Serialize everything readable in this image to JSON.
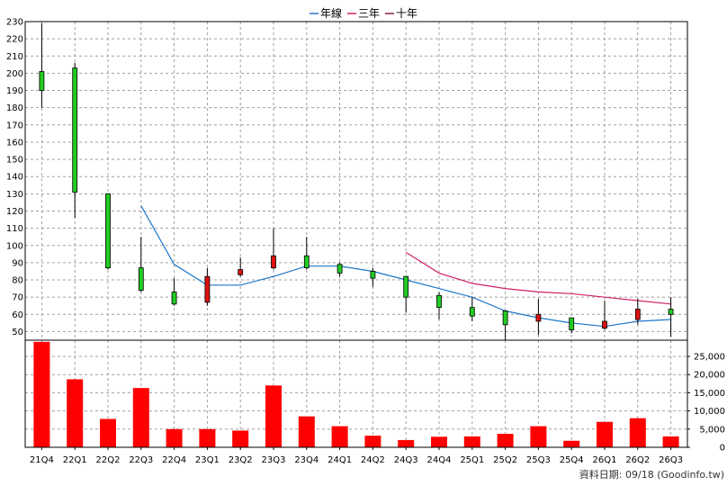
{
  "legend": [
    {
      "label": "年線",
      "color": "#1f77c8"
    },
    {
      "label": "三年",
      "color": "#d0206a"
    },
    {
      "label": "十年",
      "color": "#8b1a4a"
    }
  ],
  "footer": "資料日期: 09/18 (Goodinfo.tw)",
  "chart_data": {
    "type": "candlestick+bar",
    "categories": [
      "21Q4",
      "22Q1",
      "22Q2",
      "22Q3",
      "22Q4",
      "23Q1",
      "23Q2",
      "23Q3",
      "23Q4",
      "24Q1",
      "24Q2",
      "24Q3",
      "24Q4",
      "25Q1",
      "25Q2",
      "25Q3",
      "25Q4",
      "26Q1",
      "26Q2",
      "26Q3"
    ],
    "price_axis": {
      "min": 45,
      "max": 230,
      "ticks": [
        50,
        60,
        70,
        80,
        90,
        100,
        110,
        120,
        130,
        140,
        150,
        160,
        170,
        180,
        190,
        200,
        210,
        220,
        230
      ]
    },
    "candles": [
      {
        "open": 190,
        "close": 201,
        "high": 229,
        "low": 180
      },
      {
        "open": 131,
        "close": 203,
        "high": 206,
        "low": 116
      },
      {
        "open": 87,
        "close": 130,
        "high": 130,
        "low": 86
      },
      {
        "open": 74,
        "close": 87,
        "high": 105,
        "low": 73
      },
      {
        "open": 66,
        "close": 73,
        "high": 81,
        "low": 65
      },
      {
        "open": 82,
        "close": 67,
        "high": 87,
        "low": 65
      },
      {
        "open": 86,
        "close": 83,
        "high": 93,
        "low": 82
      },
      {
        "open": 94,
        "close": 87,
        "high": 110,
        "low": 86
      },
      {
        "open": 87,
        "close": 94,
        "high": 105,
        "low": 86
      },
      {
        "open": 84,
        "close": 89,
        "high": 90,
        "low": 82
      },
      {
        "open": 81,
        "close": 85,
        "high": 87,
        "low": 76
      },
      {
        "open": 70,
        "close": 82,
        "high": 82,
        "low": 61
      },
      {
        "open": 64,
        "close": 71,
        "high": 73,
        "low": 57
      },
      {
        "open": 59,
        "close": 64,
        "high": 70,
        "low": 56
      },
      {
        "open": 54,
        "close": 62,
        "high": 62,
        "low": 45
      },
      {
        "open": 60,
        "close": 56,
        "high": 69,
        "low": 48
      },
      {
        "open": 51,
        "close": 58,
        "high": 58,
        "low": 49
      },
      {
        "open": 56,
        "close": 52,
        "high": 68,
        "low": 51
      },
      {
        "open": 63,
        "close": 57,
        "high": 69,
        "low": 54
      },
      {
        "open": 60,
        "close": 63,
        "high": 70,
        "low": 47
      }
    ],
    "series": [
      {
        "name": "年線",
        "values": [
          null,
          null,
          null,
          123,
          89,
          77,
          77,
          82,
          88,
          88,
          85,
          80,
          75,
          70,
          62,
          58,
          55,
          53,
          56,
          57
        ]
      },
      {
        "name": "三年",
        "values": [
          null,
          null,
          null,
          null,
          null,
          null,
          null,
          null,
          null,
          null,
          null,
          96,
          84,
          78,
          75,
          73,
          72,
          70,
          68,
          66
        ]
      }
    ],
    "volume_axis": {
      "min": 0,
      "max": 25000,
      "ticks": [
        0,
        5000,
        10000,
        15000,
        20000,
        25000
      ],
      "tick_labels": [
        "0",
        "5,000",
        "10,000",
        "15,000",
        "20,000",
        "25,000"
      ]
    },
    "volume": [
      29000,
      18700,
      7800,
      16300,
      5000,
      5000,
      4600,
      17000,
      8500,
      5800,
      3200,
      2000,
      2900,
      3000,
      3700,
      5800,
      1800,
      7000,
      8000,
      3000
    ]
  }
}
